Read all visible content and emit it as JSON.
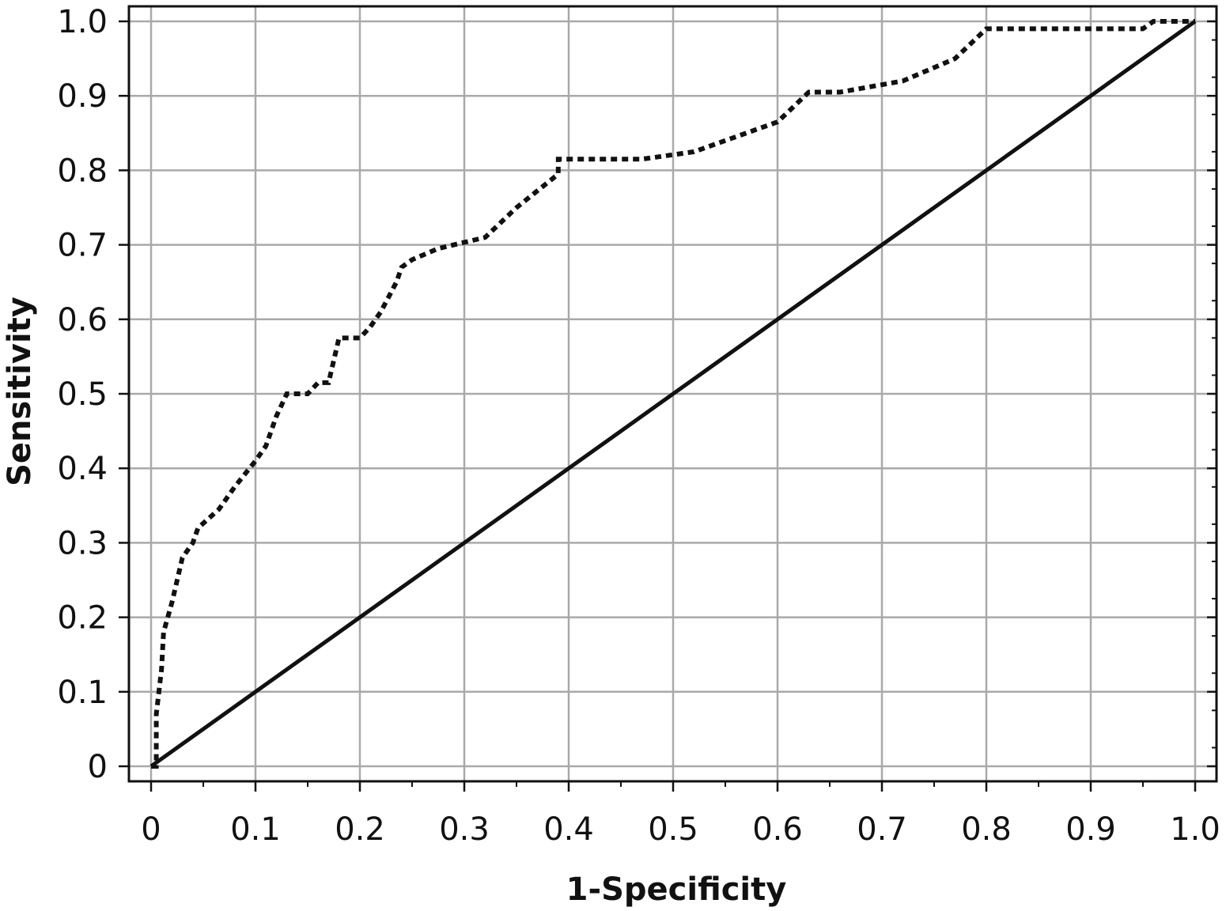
{
  "chart_data": {
    "type": "line",
    "title": "",
    "xlabel": "1-Specificity",
    "ylabel": "Sensitivity",
    "xlim": [
      0,
      1
    ],
    "ylim": [
      0,
      1
    ],
    "grid": true,
    "x_ticks": [
      0,
      0.1,
      0.2,
      0.3,
      0.4,
      0.5,
      0.6,
      0.7,
      0.8,
      0.9,
      1.0
    ],
    "y_ticks": [
      0,
      0.1,
      0.2,
      0.3,
      0.4,
      0.5,
      0.6,
      0.7,
      0.8,
      0.9,
      1.0
    ],
    "x_tick_labels": [
      "0",
      "0.1",
      "0.2",
      "0.3",
      "0.4",
      "0.5",
      "0.6",
      "0.7",
      "0.8",
      "0.9",
      "1.0"
    ],
    "y_tick_labels": [
      "0",
      "0.1",
      "0.2",
      "0.3",
      "0.4",
      "0.5",
      "0.6",
      "0.7",
      "0.8",
      "0.9",
      "1.0"
    ],
    "series": [
      {
        "style": "dotted",
        "color": "#111111",
        "points": [
          [
            0,
            0
          ],
          [
            0.005,
            0
          ],
          [
            0.005,
            0.07
          ],
          [
            0.01,
            0.13
          ],
          [
            0.012,
            0.18
          ],
          [
            0.02,
            0.22
          ],
          [
            0.025,
            0.25
          ],
          [
            0.03,
            0.28
          ],
          [
            0.04,
            0.3
          ],
          [
            0.045,
            0.32
          ],
          [
            0.065,
            0.345
          ],
          [
            0.08,
            0.375
          ],
          [
            0.1,
            0.41
          ],
          [
            0.11,
            0.43
          ],
          [
            0.12,
            0.47
          ],
          [
            0.13,
            0.5
          ],
          [
            0.15,
            0.5
          ],
          [
            0.16,
            0.515
          ],
          [
            0.17,
            0.515
          ],
          [
            0.18,
            0.575
          ],
          [
            0.2,
            0.575
          ],
          [
            0.21,
            0.59
          ],
          [
            0.22,
            0.61
          ],
          [
            0.235,
            0.65
          ],
          [
            0.24,
            0.67
          ],
          [
            0.25,
            0.68
          ],
          [
            0.275,
            0.695
          ],
          [
            0.32,
            0.71
          ],
          [
            0.35,
            0.75
          ],
          [
            0.39,
            0.795
          ],
          [
            0.39,
            0.815
          ],
          [
            0.47,
            0.815
          ],
          [
            0.52,
            0.825
          ],
          [
            0.6,
            0.865
          ],
          [
            0.63,
            0.905
          ],
          [
            0.66,
            0.905
          ],
          [
            0.72,
            0.92
          ],
          [
            0.77,
            0.95
          ],
          [
            0.8,
            0.99
          ],
          [
            0.95,
            0.99
          ],
          [
            0.96,
            1.0
          ],
          [
            1.0,
            1.0
          ]
        ]
      },
      {
        "style": "solid",
        "color": "#111111",
        "points": [
          [
            0,
            0
          ],
          [
            1,
            1
          ]
        ]
      }
    ]
  }
}
